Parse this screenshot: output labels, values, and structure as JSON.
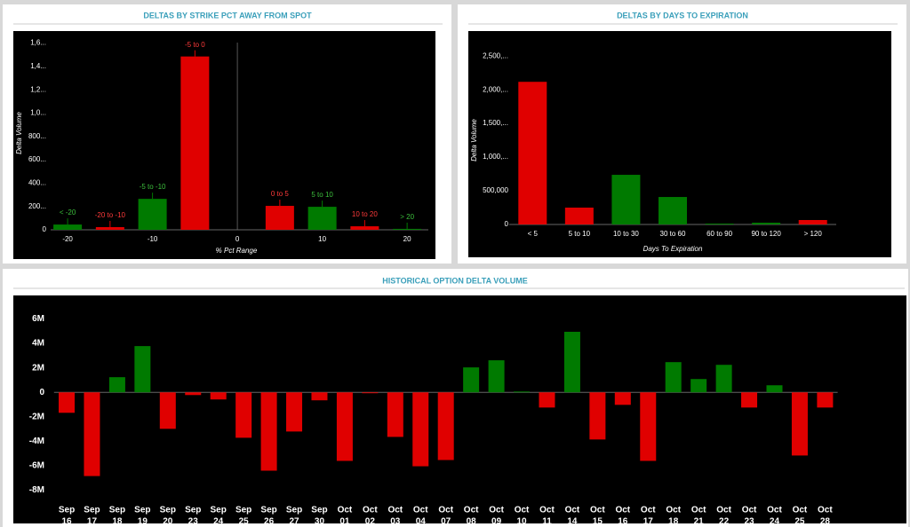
{
  "chart_data": [
    {
      "type": "bar",
      "title": "DELTAS BY STRIKE PCT AWAY FROM SPOT",
      "x_label": "% Pct Range",
      "y_label": "Delta Volume",
      "x": [
        -20,
        -15,
        -10,
        -5,
        5,
        10,
        15,
        20
      ],
      "labels": [
        "< -20",
        "-20 to -10",
        "-5 to -10",
        "-5 to 0",
        "0 to 5",
        "5 to 10",
        "10 to 20",
        "> 20"
      ],
      "values": [
        45000,
        23000,
        265000,
        1485000,
        205000,
        197000,
        30000,
        8000
      ],
      "colors": [
        "#007a00",
        "#e00000",
        "#007a00",
        "#e00000",
        "#e00000",
        "#007a00",
        "#e00000",
        "#007a00"
      ],
      "xlim": [
        -22,
        22.5
      ],
      "xticks": [
        -20,
        -10,
        0,
        10,
        20
      ],
      "ylim": [
        0,
        1680000
      ],
      "yticks": [
        0,
        {
          "value": 200000,
          "label": "200..."
        },
        {
          "value": 400000,
          "label": "400..."
        },
        {
          "value": 600000,
          "label": "600..."
        },
        {
          "value": 800000,
          "label": "800..."
        },
        {
          "value": 1000000,
          "label": "1,0..."
        },
        {
          "value": 1200000,
          "label": "1,2..."
        },
        {
          "value": 1400000,
          "label": "1,4..."
        },
        {
          "value": 1600000,
          "label": "1,6..."
        }
      ]
    },
    {
      "type": "bar",
      "title": "DELTAS BY DAYS TO EXPIRATION",
      "x_label": "Days To Expiration",
      "y_label": "Delta Volume",
      "categories": [
        "< 5",
        "5 to 10",
        "10 to 30",
        "30 to 60",
        "60 to 90",
        "90 to 120",
        "> 120"
      ],
      "values": [
        2118000,
        250000,
        737000,
        408000,
        13000,
        26000,
        66000
      ],
      "colors": [
        "#e00000",
        "#e00000",
        "#007a00",
        "#007a00",
        "#007a00",
        "#007a00",
        "#e00000"
      ],
      "ylim": [
        0,
        2740000
      ],
      "yticks": [
        0,
        {
          "value": 500000,
          "label": "500,000"
        },
        {
          "value": 1000000,
          "label": "1,000,..."
        },
        {
          "value": 1500000,
          "label": "1,500,..."
        },
        {
          "value": 2000000,
          "label": "2,000,..."
        },
        {
          "value": 2500000,
          "label": "2,500,..."
        }
      ]
    },
    {
      "type": "bar",
      "title": "HISTORICAL OPTION DELTA VOLUME",
      "categories": [
        [
          "Sep",
          "16"
        ],
        [
          "Sep",
          "17"
        ],
        [
          "Sep",
          "18"
        ],
        [
          "Sep",
          "19"
        ],
        [
          "Sep",
          "20"
        ],
        [
          "Sep",
          "23"
        ],
        [
          "Sep",
          "24"
        ],
        [
          "Sep",
          "25"
        ],
        [
          "Sep",
          "26"
        ],
        [
          "Sep",
          "27"
        ],
        [
          "Sep",
          "30"
        ],
        [
          "Oct",
          "01"
        ],
        [
          "Oct",
          "02"
        ],
        [
          "Oct",
          "03"
        ],
        [
          "Oct",
          "04"
        ],
        [
          "Oct",
          "07"
        ],
        [
          "Oct",
          "08"
        ],
        [
          "Oct",
          "09"
        ],
        [
          "Oct",
          "10"
        ],
        [
          "Oct",
          "11"
        ],
        [
          "Oct",
          "14"
        ],
        [
          "Oct",
          "15"
        ],
        [
          "Oct",
          "16"
        ],
        [
          "Oct",
          "17"
        ],
        [
          "Oct",
          "18"
        ],
        [
          "Oct",
          "21"
        ],
        [
          "Oct",
          "22"
        ],
        [
          "Oct",
          "23"
        ],
        [
          "Oct",
          "24"
        ],
        [
          "Oct",
          "25"
        ],
        [
          "Oct",
          "28"
        ]
      ],
      "values": [
        -1.67,
        -6.84,
        1.24,
        3.78,
        -2.98,
        -0.22,
        -0.58,
        -3.71,
        -6.4,
        -3.2,
        -0.65,
        -5.6,
        -0.07,
        -3.64,
        -6.04,
        -5.53,
        2.04,
        2.62,
        0.07,
        -1.24,
        4.95,
        -3.85,
        -1.02,
        -5.6,
        2.47,
        1.09,
        2.25,
        -1.24,
        0.58,
        -5.16,
        -1.24
      ],
      "color_positive": "#007a00",
      "color_negative": "#e00000",
      "ylim": [
        -8.9,
        7.05
      ],
      "yticks": [
        {
          "value": -8,
          "label": "-8M"
        },
        {
          "value": -6,
          "label": "-6M"
        },
        {
          "value": -4,
          "label": "-4M"
        },
        {
          "value": -2,
          "label": "-2M"
        },
        0,
        {
          "value": 2,
          "label": "2M"
        },
        {
          "value": 4,
          "label": "4M"
        },
        {
          "value": 6,
          "label": "6M"
        }
      ]
    }
  ]
}
